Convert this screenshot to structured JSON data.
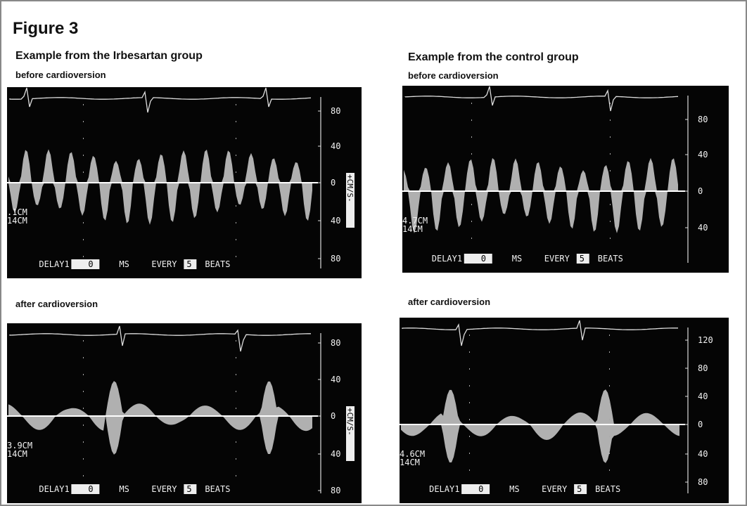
{
  "figure": {
    "title": "Figure 3"
  },
  "groups": [
    {
      "title": "Example from the Irbesartan group",
      "panels": [
        {
          "label": "before cardioversion",
          "scale": [
            "80",
            "40",
            "0",
            "40",
            "80"
          ],
          "units": "+CM/S-",
          "depth": [
            ".1CM",
            "14CM"
          ],
          "footer": {
            "delay": "DELAY1",
            "delay_value": "0",
            "delay_unit": "MS",
            "every": "EVERY",
            "every_value": "5",
            "every_unit": "BEATS"
          }
        },
        {
          "label": "after cardioversion",
          "scale": [
            "80",
            "40",
            "0",
            "40",
            "80"
          ],
          "units": "+CM/S-",
          "depth": [
            "3.9CM",
            "14CM"
          ],
          "footer": {
            "delay": "DELAY1",
            "delay_value": "0",
            "delay_unit": "MS",
            "every": "EVERY",
            "every_value": "5",
            "every_unit": "BEATS"
          }
        }
      ]
    },
    {
      "title": "Example from the control group",
      "panels": [
        {
          "label": "before cardioversion",
          "scale": [
            "80",
            "40",
            "0",
            "40"
          ],
          "depth": [
            "4.7CM",
            "14CM"
          ],
          "footer": {
            "delay": "DELAY1",
            "delay_value": "0",
            "delay_unit": "MS",
            "every": "EVERY",
            "every_value": "5",
            "every_unit": "BEATS"
          }
        },
        {
          "label": "after cardioversion",
          "scale": [
            "120",
            "80",
            "40",
            "0",
            "40",
            "80"
          ],
          "depth": [
            "4.6CM",
            "14CM"
          ],
          "footer": {
            "delay": "DELAY1",
            "delay_value": "0",
            "delay_unit": "MS",
            "every": "EVERY",
            "every_value": "5",
            "every_unit": "BEATS"
          }
        }
      ]
    }
  ]
}
